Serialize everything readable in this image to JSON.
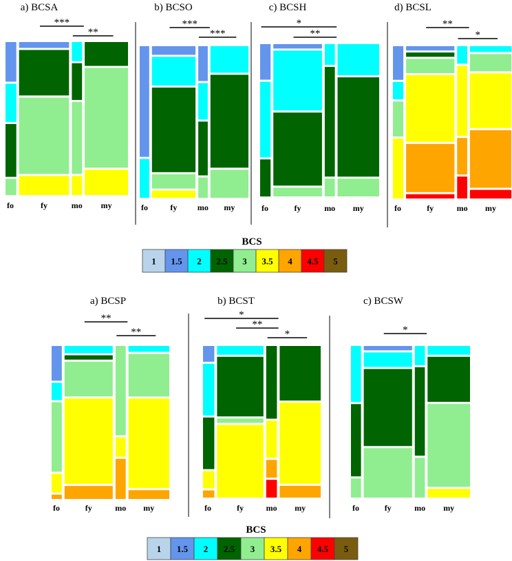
{
  "chart_data": {
    "type": "mosaic",
    "legend": {
      "title": "BCS",
      "levels": [
        "1",
        "1.5",
        "2",
        "2.5",
        "3",
        "3.5",
        "4",
        "4.5",
        "5"
      ],
      "colors": [
        "#b9d4ea",
        "#6495ed",
        "#00ffff",
        "#006400",
        "#90ee90",
        "#ffff00",
        "#ffa500",
        "#ff0000",
        "#7a5c0f"
      ]
    },
    "groups": [
      "fo",
      "fy",
      "mo",
      "my"
    ],
    "panels": [
      {
        "title": "a) BCSA",
        "group_widths": [
          0.085,
          0.393,
          0.08,
          0.34
        ],
        "proportions": [
          {
            "1.5": 0.27,
            "2": 0.26,
            "2.5": 0.36,
            "3": 0.11
          },
          {
            "1.5": 0.04,
            "2.5": 0.31,
            "3": 0.52,
            "3.5": 0.13
          },
          {
            "2": 0.13,
            "2.5": 0.25,
            "3": 0.49,
            "3.5": 0.13
          },
          {
            "2.5": 0.16,
            "3": 0.67,
            "3.5": 0.17
          }
        ],
        "significance": [
          {
            "label": "***",
            "from": "fy",
            "to": "mo"
          },
          {
            "label": "**",
            "from": "mo",
            "to": "my"
          }
        ]
      },
      {
        "title": "b) BCSO",
        "group_widths": [
          0.085,
          0.39,
          0.085,
          0.34
        ],
        "proportions": [
          {
            "1.5": 0.74,
            "2": 0.26
          },
          {
            "1.5": 0.06,
            "2": 0.2,
            "2.5": 0.59,
            "3": 0.1,
            "3.5": 0.05
          },
          {
            "1.5": 0.24,
            "2": 0.25,
            "2.5": 0.37,
            "3": 0.14
          },
          {
            "2": 0.18,
            "2.5": 0.63,
            "3": 0.19
          }
        ],
        "significance": [
          {
            "label": "***",
            "from": "fy",
            "to": "mo"
          },
          {
            "label": "***",
            "from": "mo",
            "to": "my"
          }
        ]
      },
      {
        "title": "c) BCSH",
        "group_widths": [
          0.085,
          0.395,
          0.082,
          0.338
        ],
        "proportions": [
          {
            "1.5": 0.24,
            "2": 0.51,
            "2.5": 0.25
          },
          {
            "1.5": 0.03,
            "2": 0.41,
            "2.5": 0.5,
            "3": 0.06
          },
          {
            "2": 0.14,
            "2.5": 0.74,
            "3": 0.12
          },
          {
            "2": 0.21,
            "2.5": 0.67,
            "3": 0.12
          }
        ],
        "significance": [
          {
            "label": "*",
            "from": "fo",
            "to": "mo"
          },
          {
            "label": "**",
            "from": "fy",
            "to": "mo"
          }
        ]
      },
      {
        "title": "d) BCSL",
        "group_widths": [
          0.085,
          0.395,
          0.082,
          0.338
        ],
        "proportions": [
          {
            "1.5": 0.23,
            "2": 0.12,
            "3": 0.24,
            "3.5": 0.41
          },
          {
            "1.5": 0.03,
            "2.5": 0.03,
            "3": 0.1,
            "3.5": 0.47,
            "4": 0.34,
            "4.5": 0.03
          },
          {
            "2": 0.12,
            "3.5": 0.48,
            "4": 0.25,
            "4.5": 0.15
          },
          {
            "2": 0.04,
            "3": 0.12,
            "3.5": 0.38,
            "4": 0.4,
            "4.5": 0.06
          }
        ],
        "significance": [
          {
            "label": "**",
            "from": "fy",
            "to": "mo"
          },
          {
            "label": "*",
            "from": "mo",
            "to": "my"
          }
        ]
      },
      {
        "title": "a) BCSP",
        "group_widths": [
          0.09,
          0.425,
          0.09,
          0.36
        ],
        "proportions": [
          {
            "1.5": 0.24,
            "2": 0.12,
            "3": 0.48,
            "3.5": 0.13,
            "4": 0.03
          },
          {
            "2": 0.05,
            "2.5": 0.03,
            "3": 0.24,
            "3.5": 0.59,
            "4": 0.09
          },
          {
            "3": 0.6,
            "3.5": 0.13,
            "4": 0.27
          },
          {
            "2": 0.04,
            "3": 0.29,
            "3.5": 0.61,
            "4": 0.06
          }
        ],
        "significance": [
          {
            "label": "**",
            "from": "fy",
            "to": "mo"
          },
          {
            "label": "**",
            "from": "mo",
            "to": "my"
          }
        ]
      },
      {
        "title": "b) BCST",
        "group_widths": [
          0.095,
          0.39,
          0.09,
          0.345
        ],
        "proportions": [
          {
            "1.5": 0.11,
            "2": 0.36,
            "2.5": 0.36,
            "3.5": 0.12,
            "4": 0.05
          },
          {
            "2": 0.06,
            "2.5": 0.41,
            "3": 0.03,
            "3.5": 0.5
          },
          {
            "2.5": 0.49,
            "3.5": 0.25,
            "4": 0.12,
            "4.5": 0.12
          },
          {
            "2.5": 0.37,
            "3.5": 0.55,
            "4": 0.08
          }
        ],
        "significance": [
          {
            "label": "*",
            "from": "fo",
            "to": "mo"
          },
          {
            "label": "**",
            "from": "fy",
            "to": "mo"
          },
          {
            "label": "*",
            "from": "mo",
            "to": "my"
          }
        ]
      },
      {
        "title": "c) BCSW",
        "group_widths": [
          0.085,
          0.41,
          0.085,
          0.36
        ],
        "proportions": [
          {
            "2": 0.38,
            "2.5": 0.49,
            "3": 0.13
          },
          {
            "1.5": 0.03,
            "2": 0.1,
            "2.5": 0.53,
            "3": 0.34
          },
          {
            "2": 0.13,
            "2.5": 0.6,
            "3": 0.27
          },
          {
            "2": 0.06,
            "2.5": 0.31,
            "3": 0.57,
            "3.5": 0.06
          }
        ],
        "significance": [
          {
            "label": "*",
            "from": "fy",
            "to": "mo"
          }
        ]
      }
    ]
  }
}
